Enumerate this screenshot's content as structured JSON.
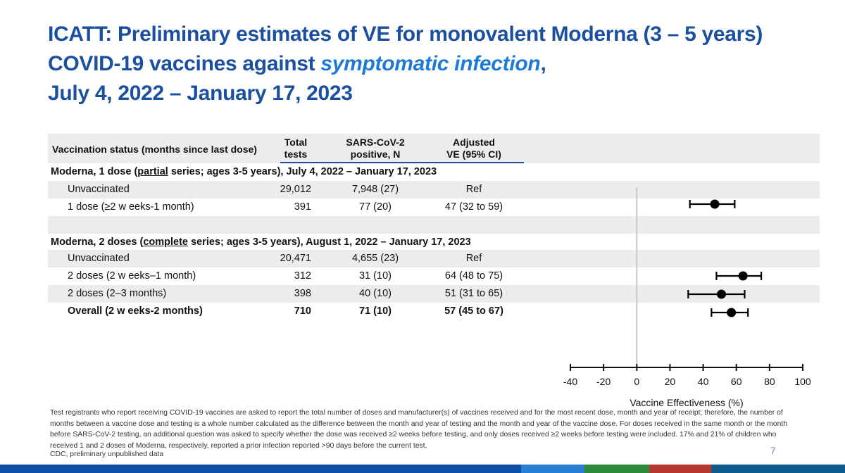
{
  "title": {
    "line1": "ICATT: Preliminary estimates of VE for monovalent Moderna (3 – 5 years)",
    "line2_pre": "COVID-19 vaccines against ",
    "line2_hl": "symptomatic infection",
    "line2_post": ",",
    "line3": "July 4, 2022 – January  17, 2023"
  },
  "table": {
    "header": {
      "status": "Vaccination status (months since last dose)",
      "total_a": "Total",
      "total_b": "tests",
      "pos_a": "SARS-CoV-2",
      "pos_b": "positive, N",
      "ve_a": "Adjusted",
      "ve_b": "VE (95% CI)"
    },
    "section1": {
      "pre": "Moderna, 1 dose (",
      "ul": "partial",
      "post": " series; ages 3-5 years), July 4, 2022 – January 17, 2023"
    },
    "section2": {
      "pre": "Moderna, 2 doses (",
      "ul": "complete",
      "post": " series; ages 3-5 years), August 1, 2022 – January 17, 2023"
    },
    "rows1": [
      {
        "label": "Unvaccinated",
        "total": "29,012",
        "pos": "7,948 (27)",
        "ve": "Ref"
      },
      {
        "label": "1 dose (≥2 w eeks-1 month)",
        "total": "391",
        "pos": "77 (20)",
        "ve": "47 (32 to 59)"
      }
    ],
    "rows2": [
      {
        "label": "Unvaccinated",
        "total": "20,471",
        "pos": "4,655 (23)",
        "ve": "Ref"
      },
      {
        "label": "2 doses (2 w eeks–1 month)",
        "total": "312",
        "pos": "31 (10)",
        "ve": "64 (48 to 75)"
      },
      {
        "label": "2 doses (2–3 months)",
        "total": "398",
        "pos": "40 (10)",
        "ve": "51 (31 to 65)"
      },
      {
        "label": "Overall (2 w eeks-2 months)",
        "total": "710",
        "pos": "71 (10)",
        "ve": "57 (45 to 67)"
      }
    ]
  },
  "chart_data": {
    "type": "scatter",
    "subtype": "forest-plot",
    "xlabel": "Vaccine Effectiveness (%)",
    "xlim": [
      -40,
      100
    ],
    "xticks": [
      -40,
      -20,
      0,
      20,
      40,
      60,
      80,
      100
    ],
    "xtick_labels": [
      "-40",
      "-20",
      "0",
      "20",
      "40",
      "60",
      "80",
      "100"
    ],
    "reference_line": 0,
    "points": [
      {
        "row": "1 dose (≥2 w eeks-1 month)",
        "ve": 47,
        "lo": 32,
        "hi": 59
      },
      {
        "row": "2 doses (2 w eeks–1 month)",
        "ve": 64,
        "lo": 48,
        "hi": 75
      },
      {
        "row": "2 doses (2–3 months)",
        "ve": 51,
        "lo": 31,
        "hi": 65
      },
      {
        "row": "Overall (2 w eeks-2 months)",
        "ve": 57,
        "lo": 45,
        "hi": 67
      }
    ]
  },
  "footnote": "Test registrants who report receiving COVID-19 vaccines are asked to report the total number of doses and manufacturer(s) of vaccines received and for the most recent dose, month and year of receipt; therefore, the number of months between a vaccine dose and testing is a whole number calculated as the difference between the month and year of testing and the month and year of the vaccine dose. For doses received in the same month or the month before SARS-CoV-2 testing, an additional question was asked to specify whether the dose was received ≥2 weeks before testing, and only doses received ≥2 weeks before testing were included. 17% and 21% of children who received 1 and 2 doses of Moderna, respectively, reported a prior infection reported >90 days before the current test.",
  "source": "CDC, preliminary unpublished data",
  "page_number": "7",
  "footer_colors": [
    "#0d4ea6",
    "#2a7fd4",
    "#2e8b3c",
    "#b5392e",
    "#0e5a8a"
  ]
}
